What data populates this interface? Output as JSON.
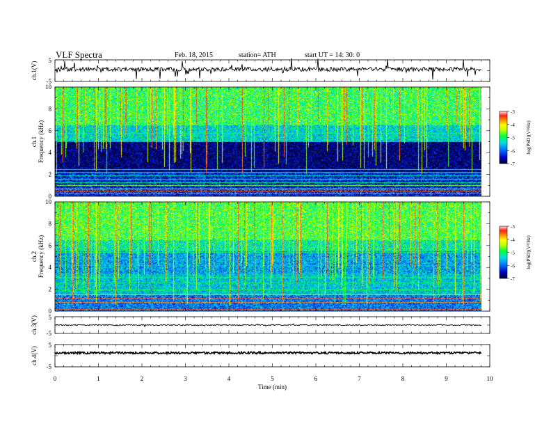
{
  "header": {
    "title": "VLF  Spectra",
    "date": "Feb. 18,  2015",
    "station": "station= ATH",
    "start": "start  UT  =   14: 30: 0"
  },
  "chart_data": [
    {
      "type": "line",
      "name": "ch1-waveform",
      "ylabel": "ch.1(V)",
      "yticks": [
        "5",
        "-5"
      ],
      "ylim": [
        -5,
        5
      ],
      "xlim": [
        0,
        10
      ]
    },
    {
      "type": "heatmap",
      "name": "ch1-spectrogram",
      "ylabel": "ch.1\nFrequency  (kHz)",
      "yticks": [
        "0",
        "2",
        "4",
        "6",
        "8",
        "10"
      ],
      "ylim": [
        0,
        10
      ],
      "xlim": [
        0,
        10
      ],
      "colorbar": {
        "label": "log(PSD)(V²/Hz)",
        "ticks": [
          "-3",
          "-4",
          "-5",
          "-6",
          "-7"
        ],
        "range": [
          -7,
          -3
        ]
      }
    },
    {
      "type": "heatmap",
      "name": "ch2-spectrogram",
      "ylabel": "ch.2\nFrequency  (kHz)",
      "yticks": [
        "0",
        "2",
        "4",
        "6",
        "8",
        "10"
      ],
      "ylim": [
        0,
        10
      ],
      "xlim": [
        0,
        10
      ],
      "colorbar": {
        "label": "log(PSD)(V²/Hz)",
        "ticks": [
          "-3",
          "-4",
          "-5",
          "-6",
          "-7"
        ],
        "range": [
          -7,
          -3
        ]
      }
    },
    {
      "type": "line",
      "name": "ch3-waveform",
      "ylabel": "ch.3(V)",
      "yticks": [
        "5",
        "-5"
      ],
      "ylim": [
        -5,
        5
      ],
      "xlim": [
        0,
        10
      ]
    },
    {
      "type": "line",
      "name": "ch4-waveform",
      "ylabel": "ch.4(V)",
      "yticks": [
        "5",
        "-5"
      ],
      "ylim": [
        -5,
        5
      ],
      "xlim": [
        0,
        10
      ]
    }
  ],
  "xaxis": {
    "label": "Time  (min)",
    "ticks": [
      "0",
      "1",
      "2",
      "3",
      "4",
      "5",
      "6",
      "7",
      "8",
      "9",
      "10"
    ]
  }
}
